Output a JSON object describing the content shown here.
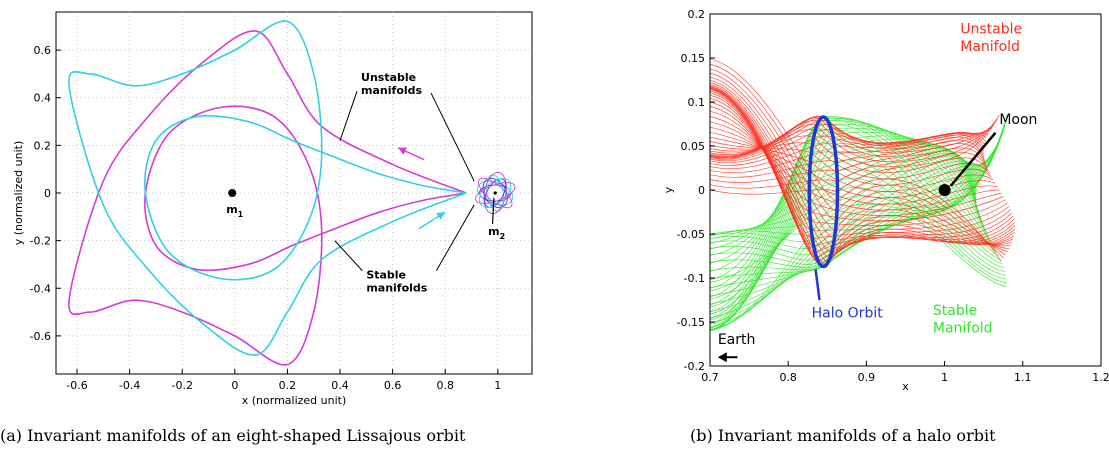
{
  "chart_data": [
    {
      "type": "line",
      "caption": "(a) Invariant manifolds of an eight-shaped Lissajous orbit",
      "xlabel": "x (normalized unit)",
      "ylabel": "y (normalized unit)",
      "xlim": [
        -0.68,
        1.13
      ],
      "ylim": [
        -0.76,
        0.76
      ],
      "xticks": [
        "-0.6",
        "-0.4",
        "-0.2",
        "0",
        "0.2",
        "0.4",
        "0.6",
        "0.8",
        "1"
      ],
      "yticks": [
        "0.6",
        "0.4",
        "0.2",
        "0",
        "-0.2",
        "-0.4",
        "-0.6"
      ],
      "grid": true,
      "series": [
        {
          "name": "Unstable manifolds",
          "color": "#d63bd6",
          "x": [
            0.88,
            0.6,
            0.33,
            0.2,
            0.08,
            -0.12,
            -0.33,
            -0.5,
            -0.63,
            -0.55,
            -0.38,
            -0.2,
            0.0,
            0.2,
            0.3,
            0.33,
            0.28,
            0.15,
            -0.05,
            -0.25,
            -0.34,
            -0.3,
            -0.15,
            0.05,
            0.22,
            0.38,
            0.55,
            0.72,
            0.88
          ],
          "y": [
            0.0,
            0.12,
            0.28,
            0.5,
            0.68,
            0.55,
            0.32,
            0.05,
            -0.45,
            -0.5,
            -0.45,
            -0.5,
            -0.6,
            -0.72,
            -0.5,
            -0.15,
            0.12,
            0.32,
            0.36,
            0.25,
            0.0,
            -0.22,
            -0.32,
            -0.3,
            -0.22,
            -0.15,
            -0.08,
            -0.03,
            0.0
          ]
        },
        {
          "name": "Stable manifolds",
          "color": "#2fd2e2",
          "x": [
            0.88,
            0.72,
            0.55,
            0.38,
            0.22,
            0.05,
            -0.15,
            -0.3,
            -0.34,
            -0.25,
            -0.05,
            0.15,
            0.28,
            0.33,
            0.3,
            0.2,
            0.0,
            -0.2,
            -0.38,
            -0.55,
            -0.63,
            -0.5,
            -0.33,
            -0.12,
            0.08,
            0.2,
            0.33,
            0.6,
            0.88
          ],
          "y": [
            0.0,
            0.03,
            0.08,
            0.15,
            0.22,
            0.3,
            0.32,
            0.22,
            0.0,
            -0.25,
            -0.36,
            -0.32,
            -0.12,
            0.15,
            0.5,
            0.72,
            0.6,
            0.5,
            0.45,
            0.5,
            0.45,
            -0.05,
            -0.32,
            -0.55,
            -0.68,
            -0.5,
            -0.28,
            -0.12,
            0.0
          ]
        },
        {
          "name": "Lissajous orbit",
          "color": "#3a3ad8",
          "cx": 0.99,
          "cy": 0.0,
          "ax": 0.08,
          "ay": 0.045
        }
      ],
      "points": [
        {
          "label": "m",
          "sub": "1",
          "x": -0.01,
          "y": 0.0
        },
        {
          "label": "m",
          "sub": "2",
          "x": 0.99,
          "y": 0.0
        }
      ],
      "annotations": [
        {
          "text_lines": [
            "Unstable",
            "manifolds"
          ],
          "x": 0.48,
          "y": 0.47,
          "target": [
            0.4,
            0.22
          ]
        },
        {
          "text_lines": [
            "Stable",
            "manifolds"
          ],
          "x": 0.5,
          "y": -0.36,
          "target": [
            0.38,
            -0.2
          ]
        }
      ]
    },
    {
      "type": "line",
      "caption": "(b) Invariant manifolds of a halo orbit",
      "xlabel": "x",
      "ylabel": "y",
      "xlim": [
        0.7,
        1.2
      ],
      "ylim": [
        -0.2,
        0.2
      ],
      "xticks": [
        "0.7",
        "0.8",
        "0.9",
        "1",
        "1.1",
        "1.2"
      ],
      "yticks": [
        "0.2",
        "0.15",
        "0.1",
        "0.05",
        "0",
        "-0.05",
        "-0.1",
        "-0.15",
        "-0.2"
      ],
      "grid": false,
      "series": [
        {
          "name": "Unstable Manifold",
          "color": "#ff2b1a"
        },
        {
          "name": "Stable Manifold",
          "color": "#2fe82a"
        },
        {
          "name": "Halo Orbit",
          "color": "#1a3ad6",
          "cx": 0.845,
          "cy": -0.002,
          "ax": 0.018,
          "ay": 0.085
        }
      ],
      "labels": [
        {
          "text": "Unstable",
          "color": "#ff2b1a",
          "x": 1.02,
          "y": 0.178
        },
        {
          "text": "Manifold",
          "color": "#ff2b1a",
          "x": 1.02,
          "y": 0.158
        },
        {
          "text": "Moon",
          "color": "#000000",
          "x": 1.07,
          "y": 0.075
        },
        {
          "text": "Halo Orbit",
          "color": "#1a3ad6",
          "x": 0.83,
          "y": -0.145
        },
        {
          "text": "Stable",
          "color": "#2fe82a",
          "x": 0.985,
          "y": -0.142
        },
        {
          "text": "Manifold",
          "color": "#2fe82a",
          "x": 0.985,
          "y": -0.162
        },
        {
          "text": "Earth",
          "color": "#000000",
          "x": 0.71,
          "y": -0.175
        }
      ]
    }
  ]
}
